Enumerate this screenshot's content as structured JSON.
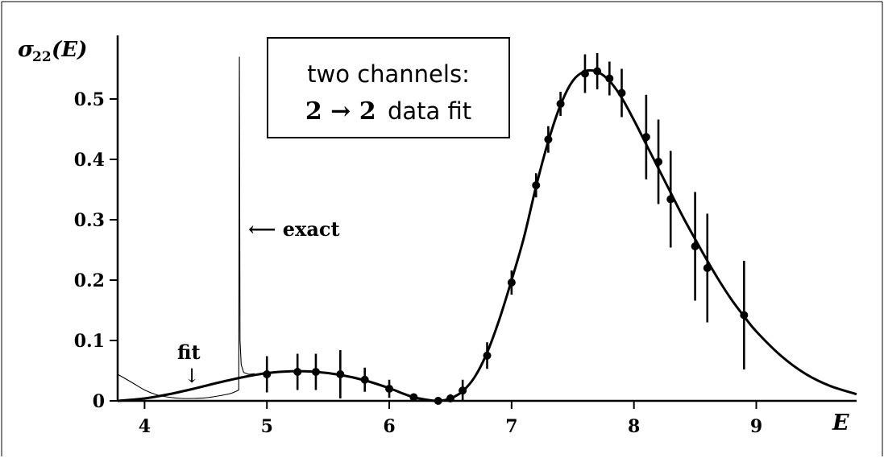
{
  "chart_data": {
    "type": "line",
    "ylabel": "σ22(E)",
    "ylabel_main": "σ",
    "ylabel_sub": "22",
    "ylabel_args": "(E)",
    "xlabel": "E",
    "xlim": [
      3.78,
      9.82
    ],
    "ylim": [
      0,
      0.6
    ],
    "x_ticks": [
      4,
      5,
      6,
      7,
      8,
      9
    ],
    "x_tick_labels": [
      "4",
      "5",
      "6",
      "7",
      "8",
      "9"
    ],
    "y_ticks": [
      0,
      0.1,
      0.2,
      0.3,
      0.4,
      0.5
    ],
    "y_tick_labels": [
      "0",
      "0.1",
      "0.2",
      "0.3",
      "0.4",
      "0.5"
    ],
    "grid": false,
    "legend_box": {
      "line1": "two channels:",
      "line2_bold": "2 → 2",
      "line2_rest": " data fit"
    },
    "annotations": [
      {
        "text": "⟵ exact",
        "label": "exact"
      },
      {
        "text": "fit",
        "label": "fit"
      }
    ],
    "series": [
      {
        "line": "thick",
        "x": [
          3.78,
          4.0,
          4.2,
          4.4,
          4.6,
          4.8,
          5.0,
          5.2,
          5.4,
          5.6,
          5.8,
          6.0,
          6.1,
          6.2,
          6.3,
          6.4,
          6.5,
          6.6,
          6.7,
          6.8,
          6.9,
          7.0,
          7.1,
          7.2,
          7.3,
          7.4,
          7.5,
          7.6,
          7.7,
          7.8,
          7.9,
          8.0,
          8.1,
          8.2,
          8.3,
          8.4,
          8.5,
          8.6,
          8.7,
          8.8,
          8.9,
          9.0,
          9.2,
          9.4,
          9.6,
          9.82
        ],
        "y": [
          0.0,
          0.004,
          0.011,
          0.02,
          0.03,
          0.039,
          0.046,
          0.049,
          0.048,
          0.043,
          0.034,
          0.021,
          0.013,
          0.006,
          0.002,
          0.0,
          0.004,
          0.016,
          0.04,
          0.08,
          0.135,
          0.2,
          0.27,
          0.355,
          0.43,
          0.49,
          0.53,
          0.546,
          0.545,
          0.53,
          0.502,
          0.465,
          0.425,
          0.385,
          0.345,
          0.305,
          0.268,
          0.232,
          0.198,
          0.167,
          0.14,
          0.115,
          0.075,
          0.045,
          0.025,
          0.011
        ]
      },
      {
        "line": "thin",
        "x": [
          3.78,
          3.9,
          4.0,
          4.1,
          4.2,
          4.3,
          4.4,
          4.5,
          4.6,
          4.7,
          4.75,
          4.77
        ],
        "y": [
          0.044,
          0.03,
          0.018,
          0.01,
          0.006,
          0.004,
          0.004,
          0.005,
          0.008,
          0.012,
          0.016,
          0.018
        ]
      },
      {
        "line": "thin",
        "x": [
          4.77,
          4.775,
          4.78,
          4.79,
          4.81,
          4.85,
          4.9
        ],
        "y": [
          0.018,
          0.57,
          0.1,
          0.06,
          0.047,
          0.044,
          0.045
        ]
      }
    ],
    "points": {
      "x": [
        5.0,
        5.25,
        5.4,
        5.6,
        5.8,
        6.0,
        6.2,
        6.4,
        6.5,
        6.6,
        6.8,
        7.0,
        7.2,
        7.3,
        7.4,
        7.6,
        7.7,
        7.8,
        7.9,
        8.1,
        8.2,
        8.3,
        8.5,
        8.6,
        8.9
      ],
      "y": [
        0.044,
        0.048,
        0.048,
        0.044,
        0.035,
        0.02,
        0.006,
        0.0,
        0.004,
        0.017,
        0.075,
        0.196,
        0.357,
        0.433,
        0.492,
        0.542,
        0.546,
        0.534,
        0.51,
        0.437,
        0.396,
        0.334,
        0.256,
        0.22,
        0.142
      ],
      "err": [
        0.03,
        0.03,
        0.03,
        0.04,
        0.02,
        0.015,
        0.005,
        0.003,
        0.007,
        0.018,
        0.022,
        0.02,
        0.02,
        0.022,
        0.02,
        0.032,
        0.03,
        0.028,
        0.04,
        0.07,
        0.07,
        0.08,
        0.09,
        0.09,
        0.09
      ]
    }
  }
}
